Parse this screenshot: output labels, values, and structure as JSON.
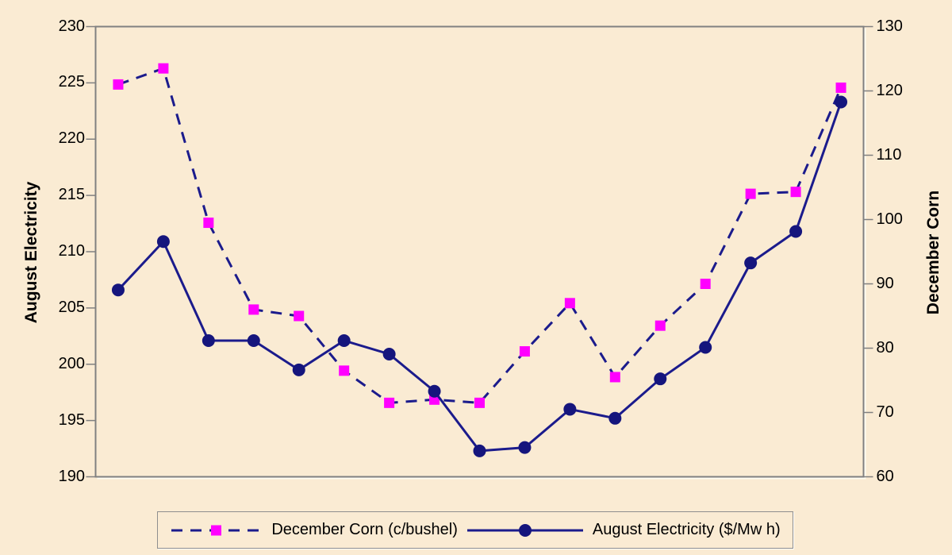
{
  "chart_data": {
    "type": "line",
    "title": "",
    "background_color": "#FAEBD3",
    "axis_color": "#808080",
    "grid": false,
    "legend_position": "bottom",
    "left_axis": {
      "title": "August Electricity",
      "min": 190,
      "max": 230,
      "step": 5,
      "tick_labels": [
        "230",
        "225",
        "220",
        "215",
        "210",
        "205",
        "200",
        "195",
        "190"
      ]
    },
    "right_axis": {
      "title": "December Corn",
      "min": 60,
      "max": 130,
      "step": 10,
      "tick_labels": [
        "130",
        "120",
        "110",
        "100",
        "90",
        "80",
        "70",
        "60"
      ]
    },
    "n_points": 17,
    "series": [
      {
        "name": "December Corn (c/bushel)",
        "axis": "right",
        "line_style": "dashed",
        "marker": "square",
        "line_color": "#1B1B8C",
        "marker_color": "#FF00FF",
        "values": [
          121,
          123.5,
          99.5,
          86,
          85,
          76.5,
          71.5,
          72,
          71.5,
          79.5,
          87,
          75.5,
          83.5,
          90,
          104,
          104.3,
          120.5
        ]
      },
      {
        "name": "August Electricity ($/Mw h)",
        "axis": "left",
        "line_style": "solid",
        "marker": "circle",
        "line_color": "#1B1B8C",
        "marker_color": "#15157D",
        "values": [
          206.6,
          210.9,
          202.1,
          202.1,
          199.5,
          202.1,
          200.9,
          197.6,
          192.3,
          192.6,
          196.0,
          195.2,
          198.7,
          201.5,
          209.0,
          211.8,
          223.3
        ]
      }
    ]
  }
}
